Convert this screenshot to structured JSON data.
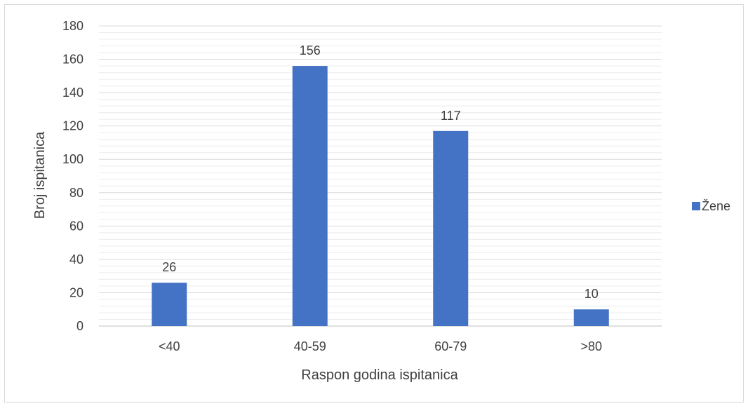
{
  "chart_data": {
    "type": "bar",
    "categories": [
      "<40",
      "40-59",
      "60-79",
      ">80"
    ],
    "series": [
      {
        "name": "Žene",
        "values": [
          26,
          156,
          117,
          10
        ],
        "color": "#4472c4"
      }
    ],
    "data_labels": [
      "26",
      "156",
      "117",
      "10"
    ],
    "xlabel": "Raspon godina ispitanica",
    "ylabel": "Broj ispitanica",
    "ylim": [
      0,
      180
    ],
    "y_ticks": [
      0,
      20,
      40,
      60,
      80,
      100,
      120,
      140,
      160,
      180
    ],
    "y_tick_labels": [
      "0",
      "20",
      "40",
      "60",
      "80",
      "100",
      "120",
      "140",
      "160",
      "180"
    ],
    "grid": true,
    "minor_grid": true,
    "legend_position": "right"
  }
}
